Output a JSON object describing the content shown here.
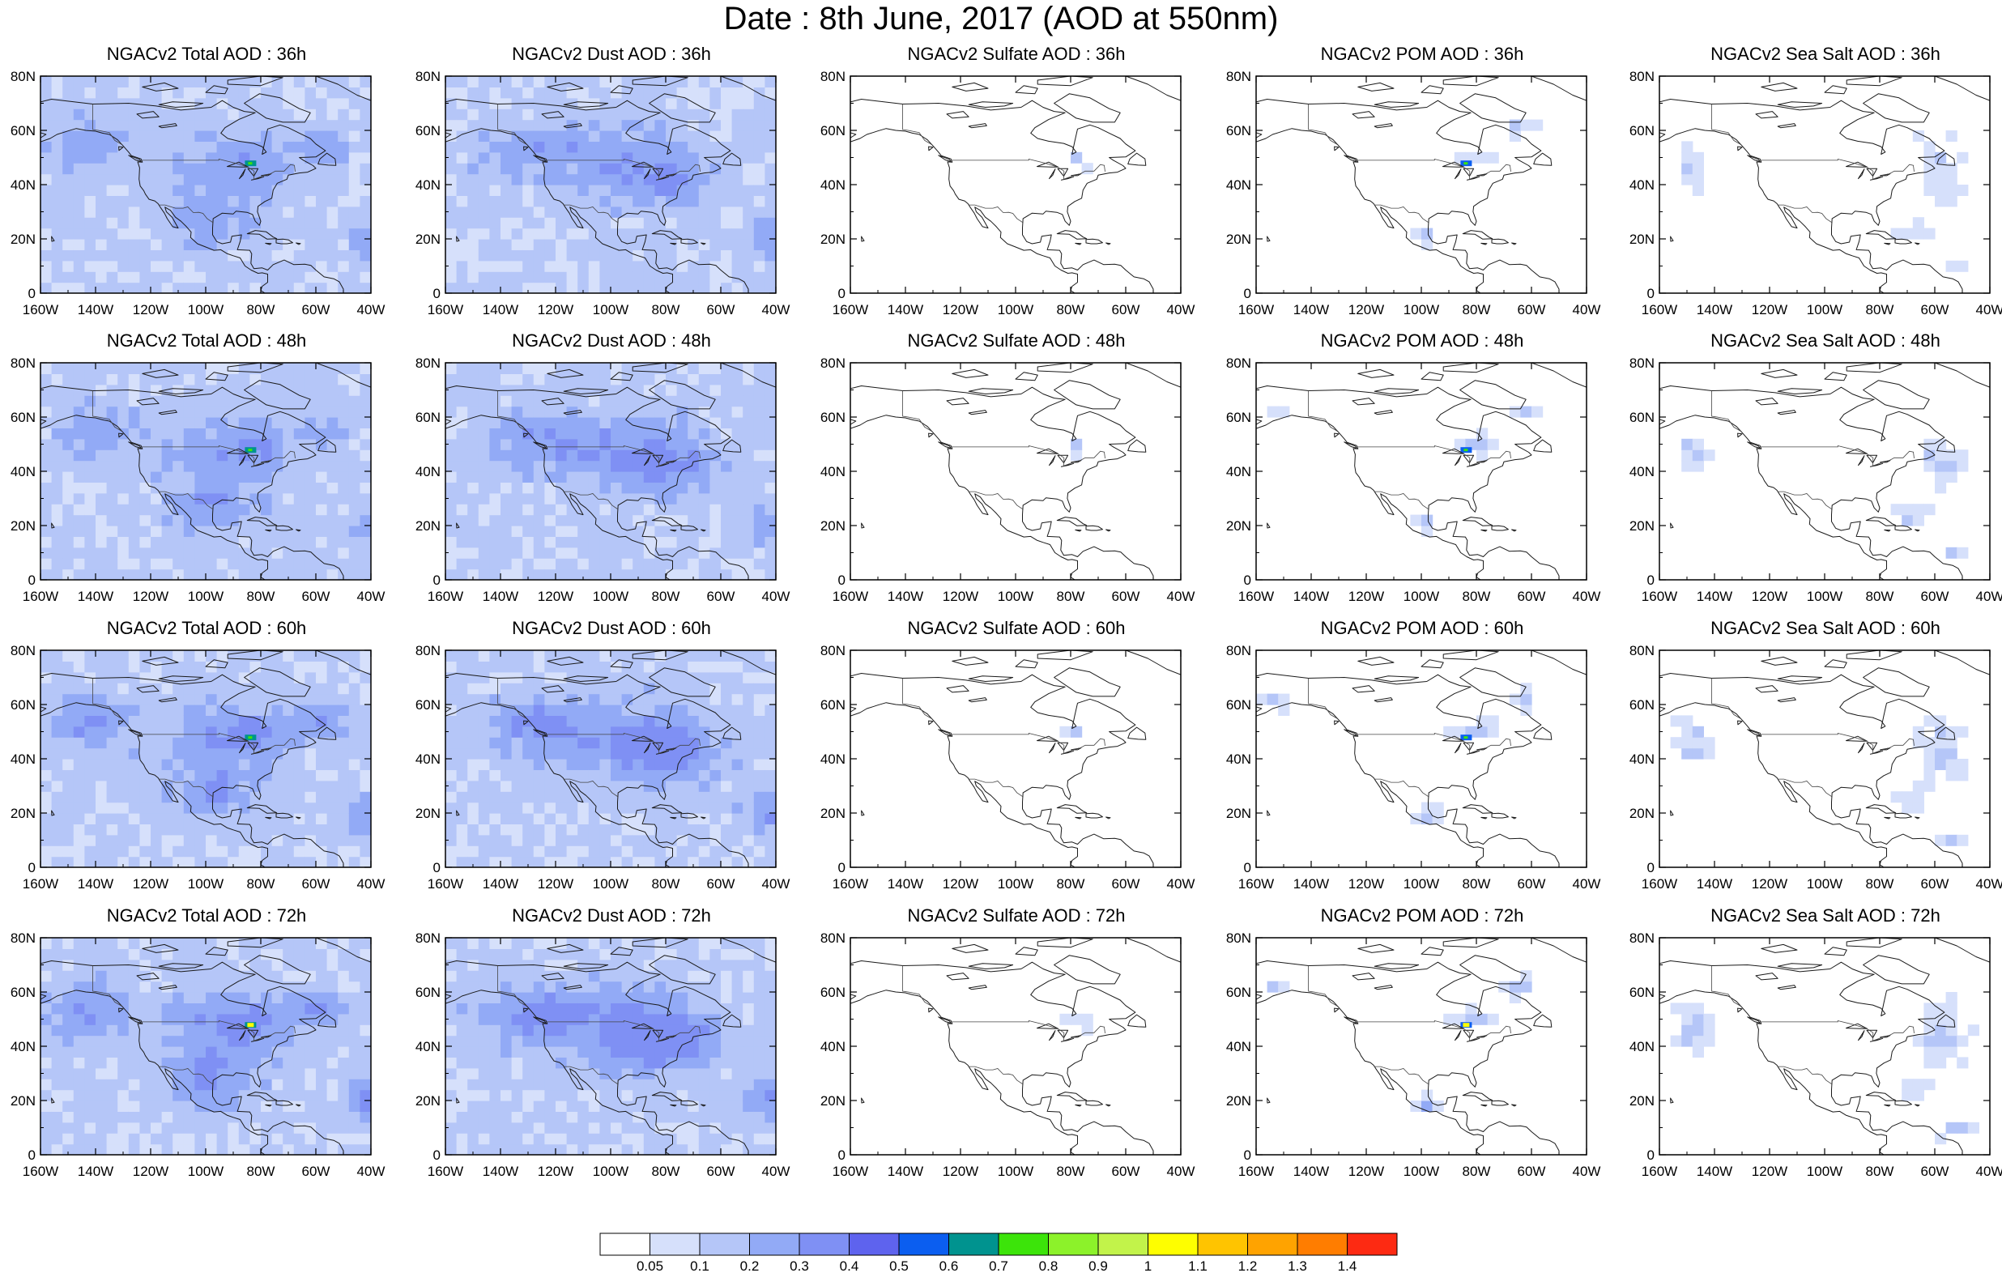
{
  "title": "Date : 8th June, 2017 (AOD at 550nm)",
  "rows": [
    "36h",
    "48h",
    "60h",
    "72h"
  ],
  "columns": [
    {
      "key": "total",
      "titles": [
        "NGACv2 Total AOD : 36h",
        "NGACv2 Total AOD : 48h",
        "NGACv2 Total AOD : 60h",
        "NGACv2 Total AOD : 72h"
      ]
    },
    {
      "key": "dust",
      "titles": [
        "NGACv2 Dust AOD : 36h",
        "NGACv2 Dust AOD : 48h",
        "NGACv2 Dust AOD : 60h",
        "NGACv2 Dust AOD : 72h"
      ]
    },
    {
      "key": "sulfate",
      "titles": [
        "NGACv2 Sulfate AOD : 36h",
        "NGACv2 Sulfate AOD : 48h",
        "NGACv2 Sulfate AOD : 60h",
        "NGACv2 Sulfate AOD : 72h"
      ]
    },
    {
      "key": "pom",
      "titles": [
        "NGACv2 POM AOD : 36h",
        "NGACv2 POM AOD : 48h",
        "NGACv2 POM AOD : 60h",
        "NGACv2 POM AOD : 72h"
      ]
    },
    {
      "key": "seasalt",
      "titles": [
        "NGACv2 Sea Salt AOD : 36h",
        "NGACv2 Sea Salt AOD : 48h",
        "NGACv2 Sea Salt AOD : 60h",
        "NGACv2 Sea Salt  AOD : 72h"
      ]
    }
  ],
  "map": {
    "lon_range": [
      -160,
      -40
    ],
    "lat_range": [
      0,
      80
    ],
    "lon_ticks": [
      "160W",
      "140W",
      "120W",
      "100W",
      "80W",
      "60W",
      "40W"
    ],
    "lat_ticks": [
      "0",
      "20N",
      "40N",
      "60N",
      "80N"
    ]
  },
  "colorbar": {
    "labels": [
      "0.05",
      "0.1",
      "0.2",
      "0.3",
      "0.4",
      "0.5",
      "0.6",
      "0.7",
      "0.8",
      "0.9",
      "1",
      "1.1",
      "1.2",
      "1.3",
      "1.4"
    ],
    "colors": [
      "#ffffff",
      "#d6e0fb",
      "#b5c6f8",
      "#92aaf6",
      "#7f90f4",
      "#5e63ee",
      "#0b5ef0",
      "#00938f",
      "#3ce40a",
      "#8cf22a",
      "#c2f34a",
      "#fefe00",
      "#ffc400",
      "#ffa300",
      "#ff7d00",
      "#fd2a12"
    ]
  },
  "fields": {
    "total": {
      "base": "#bccbf8",
      "hotspot": "#2fa86a"
    },
    "dust": {
      "base": "#bfcdf8",
      "hotspot": "#92aaf6"
    },
    "sulfate": {
      "base": "#ffffff",
      "hotspot": "#b5c6f8"
    },
    "pom": {
      "base": "#ffffff",
      "hotspot": "#7f90f4"
    },
    "seasalt": {
      "base": "#ffffff",
      "hotspot": "#b5c6f8"
    }
  }
}
